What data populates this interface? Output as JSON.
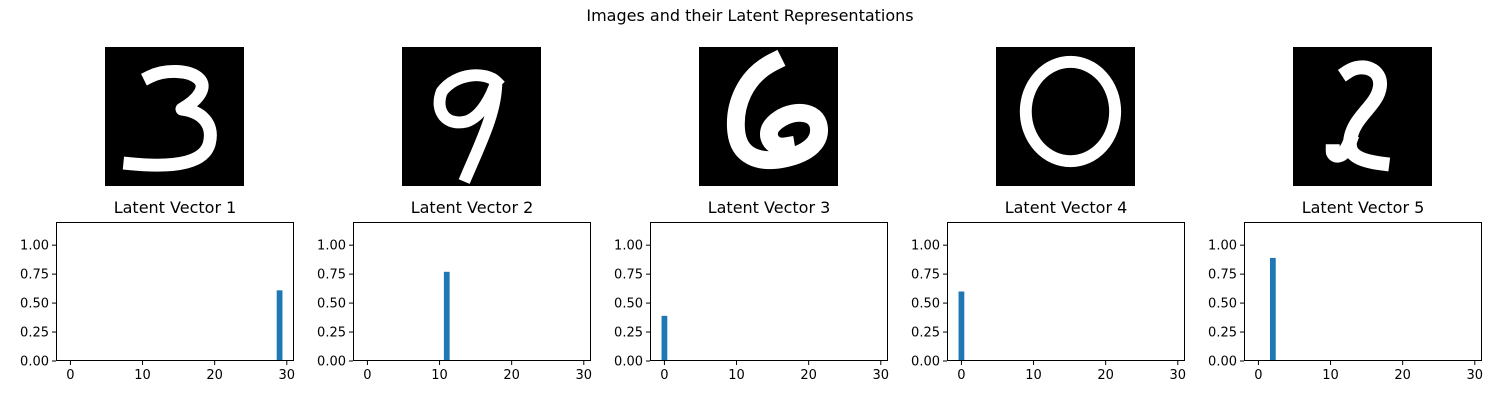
{
  "suptitle": "Images and their Latent Representations",
  "chart_data": [
    {
      "type": "bar",
      "title": "Latent Vector 1",
      "digit_label": "3",
      "bar_index": 29,
      "bar_value": 0.61,
      "n": 30,
      "xlim": [
        -2,
        31
      ],
      "ylim": [
        0,
        1.2
      ],
      "xticks": [
        0,
        10,
        20,
        30
      ],
      "yticks": [
        0.0,
        0.25,
        0.5,
        0.75,
        1.0
      ]
    },
    {
      "type": "bar",
      "title": "Latent Vector 2",
      "digit_label": "9",
      "bar_index": 11,
      "bar_value": 0.77,
      "n": 30,
      "xlim": [
        -2,
        31
      ],
      "ylim": [
        0,
        1.2
      ],
      "xticks": [
        0,
        10,
        20,
        30
      ],
      "yticks": [
        0.0,
        0.25,
        0.5,
        0.75,
        1.0
      ]
    },
    {
      "type": "bar",
      "title": "Latent Vector 3",
      "digit_label": "6",
      "bar_index": 0,
      "bar_value": 0.39,
      "n": 30,
      "xlim": [
        -2,
        31
      ],
      "ylim": [
        0,
        1.2
      ],
      "xticks": [
        0,
        10,
        20,
        30
      ],
      "yticks": [
        0.0,
        0.25,
        0.5,
        0.75,
        1.0
      ]
    },
    {
      "type": "bar",
      "title": "Latent Vector 4",
      "digit_label": "0",
      "bar_index": 0,
      "bar_value": 0.6,
      "n": 30,
      "xlim": [
        -2,
        31
      ],
      "ylim": [
        0,
        1.2
      ],
      "xticks": [
        0,
        10,
        20,
        30
      ],
      "yticks": [
        0.0,
        0.25,
        0.5,
        0.75,
        1.0
      ]
    },
    {
      "type": "bar",
      "title": "Latent Vector 5",
      "digit_label": "2",
      "bar_index": 2,
      "bar_value": 0.89,
      "n": 30,
      "xlim": [
        -2,
        31
      ],
      "ylim": [
        0,
        1.2
      ],
      "xticks": [
        0,
        10,
        20,
        30
      ],
      "yticks": [
        0.0,
        0.25,
        0.5,
        0.75,
        1.0
      ]
    }
  ],
  "bar_color": "#1f77b4",
  "ytick_labels": [
    "0.00",
    "0.25",
    "0.50",
    "0.75",
    "1.00"
  ]
}
